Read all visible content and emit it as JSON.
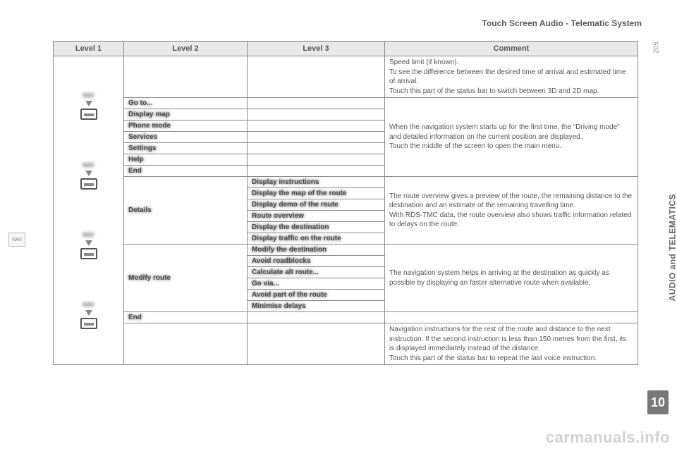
{
  "header": "Touch Screen Audio - Telematic System",
  "side_label": "AUDIO and TELEMATICS",
  "chapter_num": "10",
  "page_num": "205",
  "nav_tab": "NAV",
  "watermark": "carmanuals.info",
  "columns": {
    "c1": "Level 1",
    "c2": "Level 2",
    "c3": "Level 3",
    "c4": "Comment"
  },
  "lvl1_label": "NAV",
  "group1": {
    "comment": "Speed limit (if known).\nTo see the difference between the desired time of arrival and estimated time of arrival.\nTouch this part of the status bar to switch between 3D and 2D map."
  },
  "group2": {
    "items": [
      "Go to...",
      "Display map",
      "Phone mode",
      "Services",
      "Settings",
      "Help",
      "End"
    ],
    "comment": "When the navigation system starts up for the first time, the \"Driving mode\" and detailed information on the current position are displayed.\nTouch the middle of the screen to open the main menu."
  },
  "group3a": {
    "lvl2": "Details",
    "items": [
      "Display instructions",
      "Display the map of the route",
      "Display demo of the route",
      "Route overview",
      "Display the destination",
      "Display traffic on the route"
    ],
    "comment": "The route overview gives a preview of the route, the remaining distance to the destination and an estimate of the remaining travelling time.\nWith RDS-TMC data, the route overview also shows traffic information related to delays on the route."
  },
  "group3b": {
    "lvl2": "Modify route",
    "items": [
      "Modify the destination",
      "Avoid roadblocks",
      "Calculate alt route...",
      "Go via...",
      "Avoid part of the route",
      "Minimise delays"
    ],
    "comment": "The navigation system helps in arriving at the destination as quickly as possible by displaying an faster alternative route when available."
  },
  "group3_end": "End",
  "group4": {
    "comment": "Navigation instructions for the rest of the route and distance to the next instruction. If the second instruction is less than 150 metres from the first, its is displayed immediately instead of the distance.\nTouch this part of the status bar to repeat the last voice instruction."
  }
}
